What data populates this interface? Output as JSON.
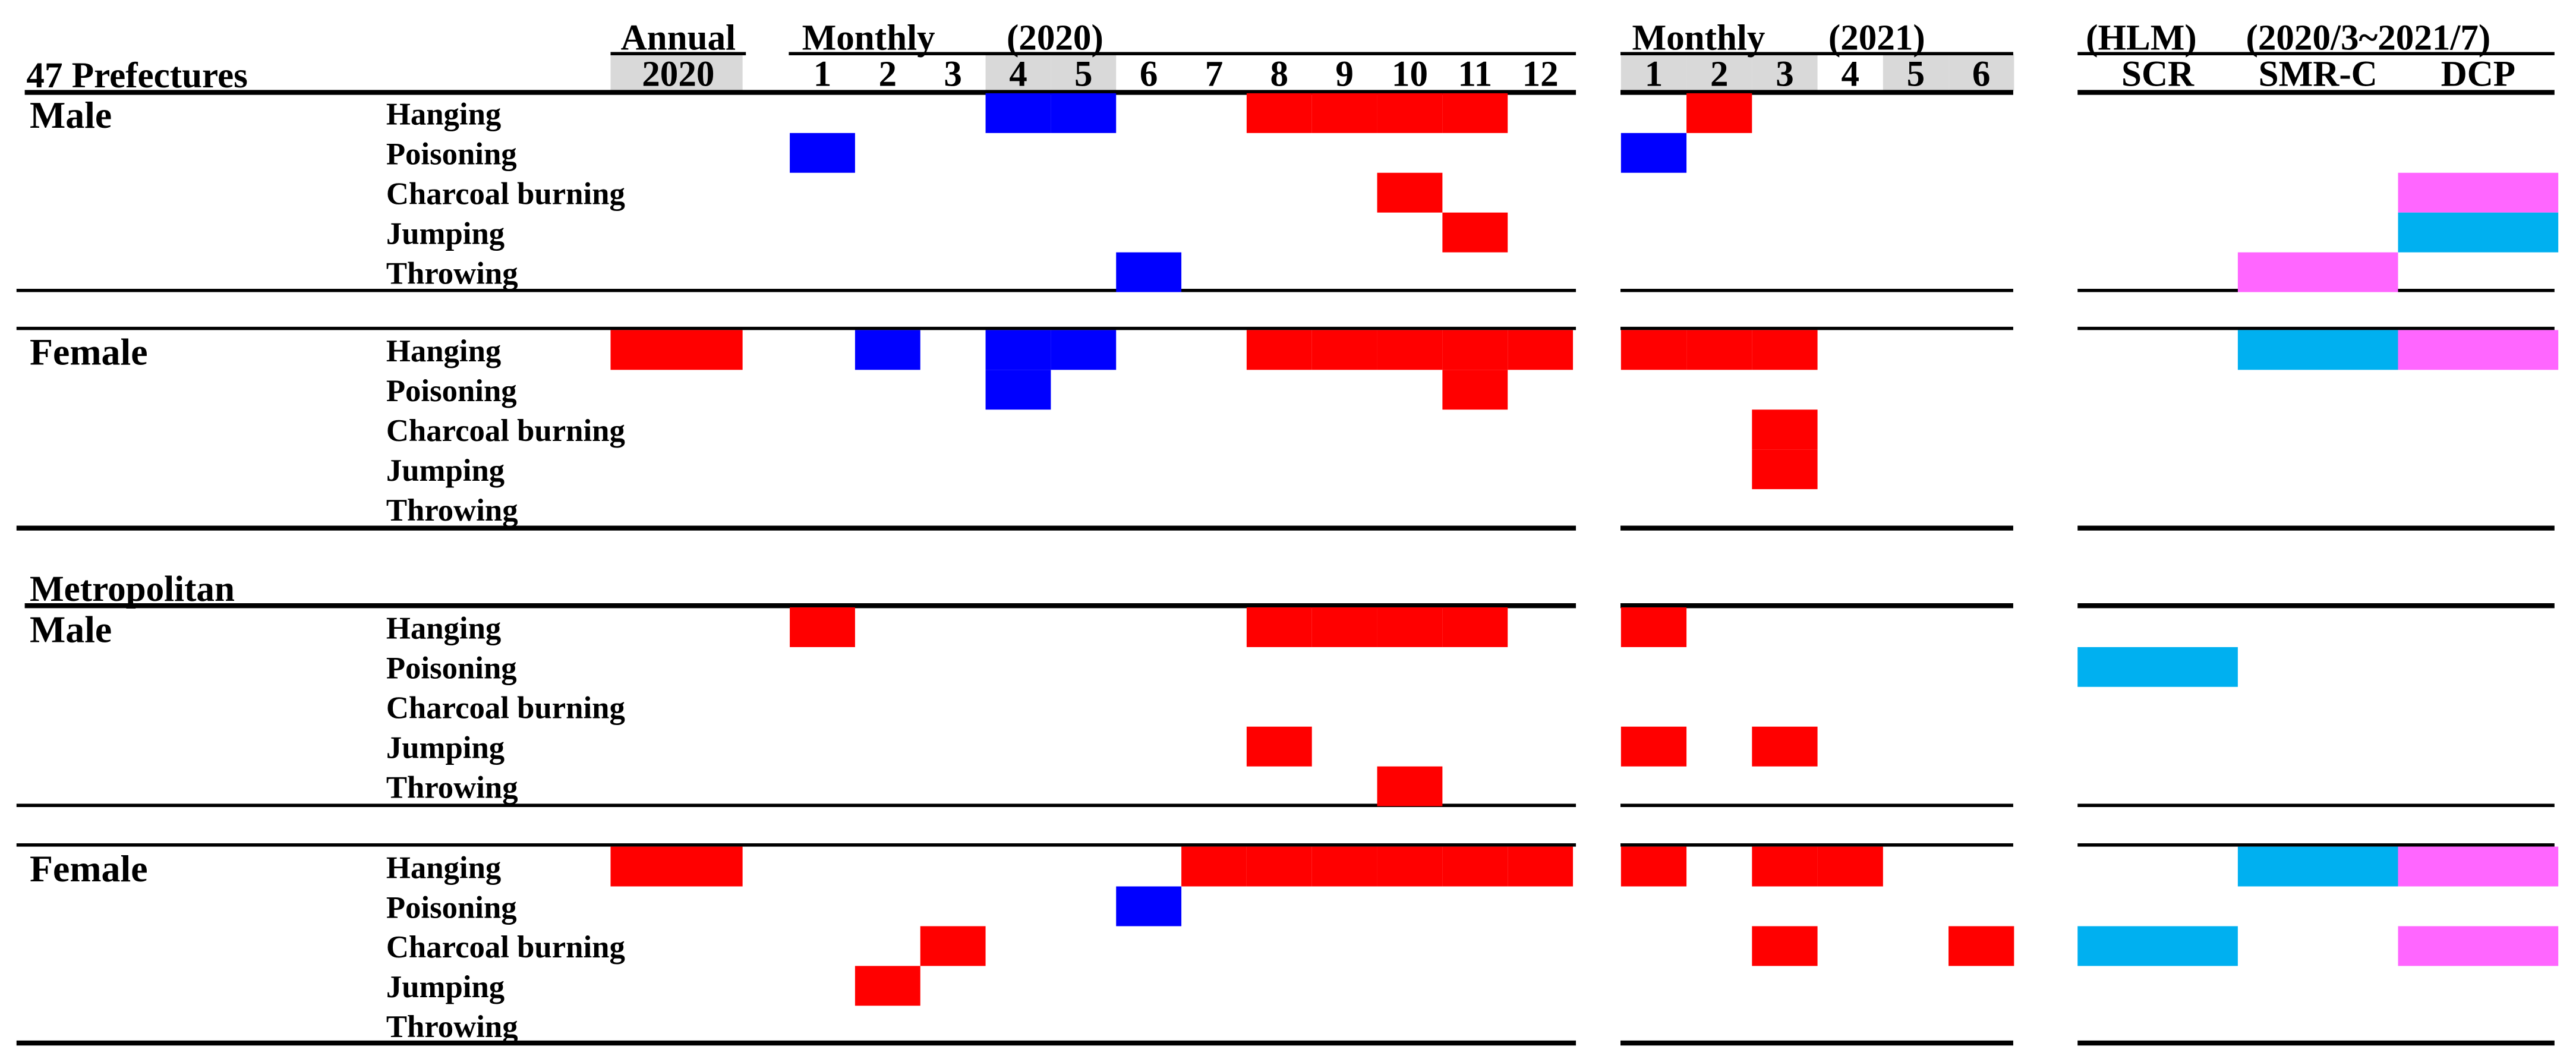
{
  "chart_data": {
    "type": "table",
    "title": "",
    "colors": {
      "red": "#ff0000",
      "blue": "#0000ff",
      "pink": "#ff66ff",
      "cyan": "#00b0f0",
      "header_shade": "#d9d9d9"
    },
    "header": {
      "row_title": "47 Prefectures",
      "annual_label": "Annual",
      "annual_year": "2020",
      "monthly2020_label": "Monthly",
      "monthly2020_year": "(2020)",
      "monthly2021_label": "Monthly",
      "monthly2021_year": "(2021)",
      "hlm_label": "(HLM)",
      "hlm_period": "(2020/3~2021/7)",
      "months_2020": [
        "1",
        "2",
        "3",
        "4",
        "5",
        "6",
        "7",
        "8",
        "9",
        "10",
        "11",
        "12"
      ],
      "months_2021": [
        "1",
        "2",
        "3",
        "4",
        "5",
        "6"
      ],
      "shaded_months_2020": [
        "4",
        "5"
      ],
      "shaded_months_2021": [
        "1",
        "2",
        "3",
        "5",
        "6"
      ],
      "hlm_columns": [
        "SCR",
        "SMR-C",
        "DCP"
      ]
    },
    "methods": [
      "Hanging",
      "Poisoning",
      "Charcoal burning",
      "Jumping",
      "Throwing"
    ],
    "groups": [
      {
        "region": "",
        "sex": "Male",
        "rows": [
          {
            "method": "Hanging",
            "annual": "",
            "m2020": {
              "4": "blue",
              "5": "blue",
              "8": "red",
              "9": "red",
              "10": "red",
              "11": "red"
            },
            "m2021": {
              "2": "red"
            },
            "hlm": {}
          },
          {
            "method": "Poisoning",
            "annual": "",
            "m2020": {
              "1": "blue"
            },
            "m2021": {
              "1": "blue"
            },
            "hlm": {}
          },
          {
            "method": "Charcoal burning",
            "annual": "",
            "m2020": {
              "10": "red"
            },
            "m2021": {},
            "hlm": {
              "DCP": "pink"
            }
          },
          {
            "method": "Jumping",
            "annual": "",
            "m2020": {
              "11": "red"
            },
            "m2021": {},
            "hlm": {
              "DCP": "cyan"
            }
          },
          {
            "method": "Throwing",
            "annual": "",
            "m2020": {
              "6": "blue"
            },
            "m2021": {},
            "hlm": {
              "SMR-C": "pink"
            }
          }
        ]
      },
      {
        "region": "",
        "sex": "Female",
        "rows": [
          {
            "method": "Hanging",
            "annual": "red",
            "m2020": {
              "2": "blue",
              "4": "blue",
              "5": "blue",
              "8": "red",
              "9": "red",
              "10": "red",
              "11": "red",
              "12": "red"
            },
            "m2021": {
              "1": "red",
              "2": "red",
              "3": "red"
            },
            "hlm": {
              "SMR-C": "cyan",
              "DCP": "pink"
            }
          },
          {
            "method": "Poisoning",
            "annual": "",
            "m2020": {
              "4": "blue",
              "11": "red"
            },
            "m2021": {},
            "hlm": {}
          },
          {
            "method": "Charcoal burning",
            "annual": "",
            "m2020": {},
            "m2021": {
              "3": "red"
            },
            "hlm": {}
          },
          {
            "method": "Jumping",
            "annual": "",
            "m2020": {},
            "m2021": {
              "3": "red"
            },
            "hlm": {}
          },
          {
            "method": "Throwing",
            "annual": "",
            "m2020": {},
            "m2021": {},
            "hlm": {}
          }
        ]
      },
      {
        "region": "Metropolitan",
        "sex": "Male",
        "rows": [
          {
            "method": "Hanging",
            "annual": "",
            "m2020": {
              "1": "red",
              "8": "red",
              "9": "red",
              "10": "red",
              "11": "red"
            },
            "m2021": {
              "1": "red"
            },
            "hlm": {}
          },
          {
            "method": "Poisoning",
            "annual": "",
            "m2020": {},
            "m2021": {},
            "hlm": {
              "SCR": "cyan"
            }
          },
          {
            "method": "Charcoal burning",
            "annual": "",
            "m2020": {},
            "m2021": {},
            "hlm": {}
          },
          {
            "method": "Jumping",
            "annual": "",
            "m2020": {
              "8": "red"
            },
            "m2021": {
              "1": "red",
              "3": "red"
            },
            "hlm": {}
          },
          {
            "method": "Throwing",
            "annual": "",
            "m2020": {
              "10": "red"
            },
            "m2021": {},
            "hlm": {}
          }
        ]
      },
      {
        "region": "",
        "sex": "Female",
        "rows": [
          {
            "method": "Hanging",
            "annual": "red",
            "m2020": {
              "7": "red",
              "8": "red",
              "9": "red",
              "10": "red",
              "11": "red",
              "12": "red"
            },
            "m2021": {
              "1": "red",
              "3": "red",
              "4": "red"
            },
            "hlm": {
              "SMR-C": "cyan",
              "DCP": "pink"
            }
          },
          {
            "method": "Poisoning",
            "annual": "",
            "m2020": {
              "6": "blue"
            },
            "m2021": {},
            "hlm": {}
          },
          {
            "method": "Charcoal burning",
            "annual": "",
            "m2020": {
              "3": "red"
            },
            "m2021": {
              "3": "red",
              "6": "red"
            },
            "hlm": {
              "SCR": "cyan",
              "DCP": "pink"
            }
          },
          {
            "method": "Jumping",
            "annual": "",
            "m2020": {
              "2": "red"
            },
            "m2021": {},
            "hlm": {}
          },
          {
            "method": "Throwing",
            "annual": "",
            "m2020": {},
            "m2021": {},
            "hlm": {}
          }
        ]
      }
    ]
  }
}
